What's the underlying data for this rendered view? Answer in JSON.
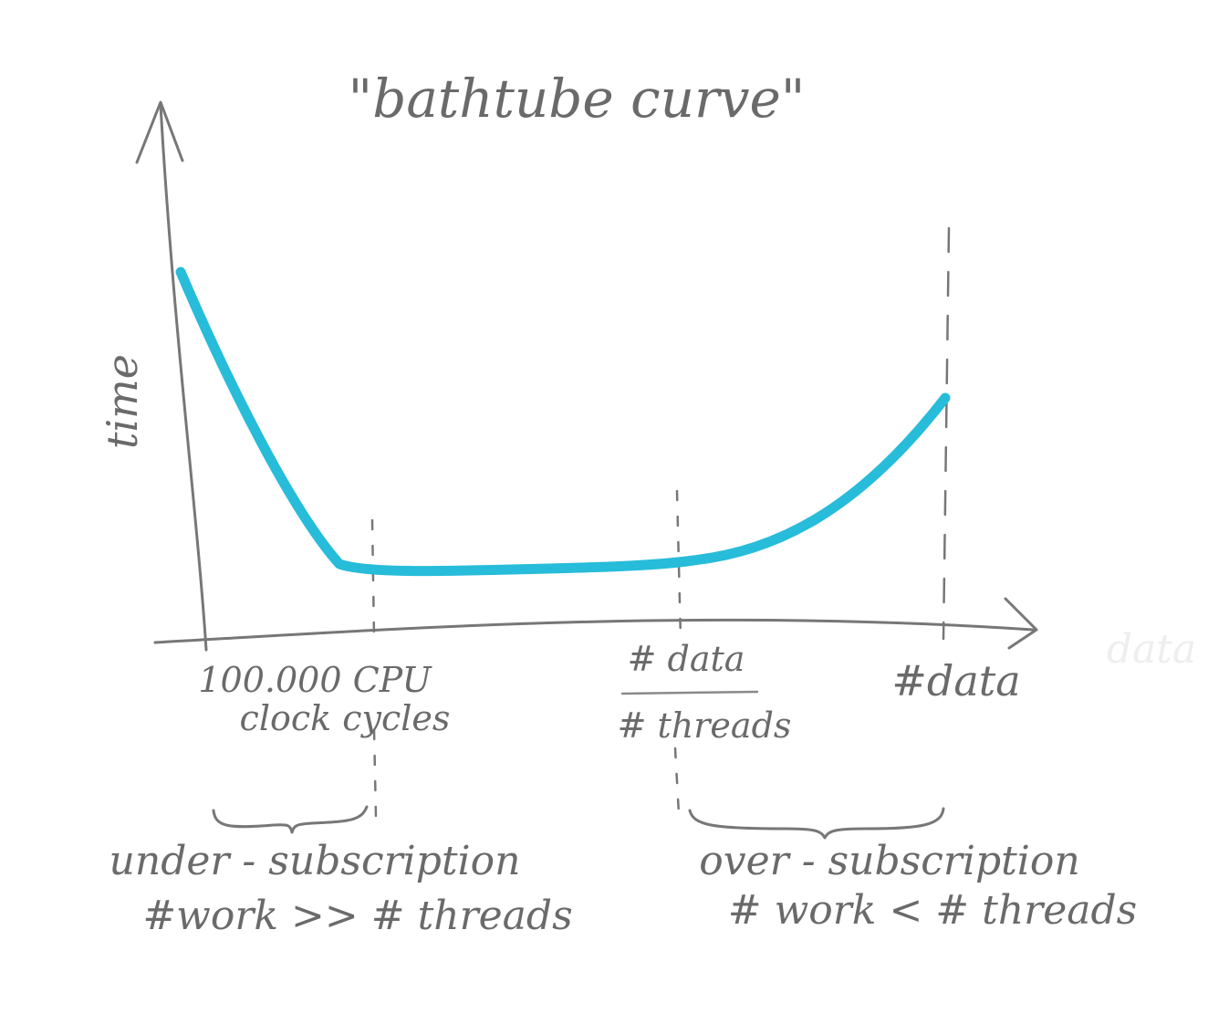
{
  "title": "\"bathtube curve\"",
  "y_axis_label": "time",
  "ticks": {
    "left_line1": "100.000 CPU",
    "left_line2": "clock cycles",
    "middle_numerator": "# data",
    "middle_denominator": "# threads",
    "right": "#data"
  },
  "regions": {
    "under_title": "under - subscription",
    "under_condition": "#work >> # threads",
    "over_title": "over - subscription",
    "over_condition": "# work < # threads"
  },
  "faint_text": "data",
  "colors": {
    "curve": "#27bcd9",
    "pencil": "#777777"
  }
}
